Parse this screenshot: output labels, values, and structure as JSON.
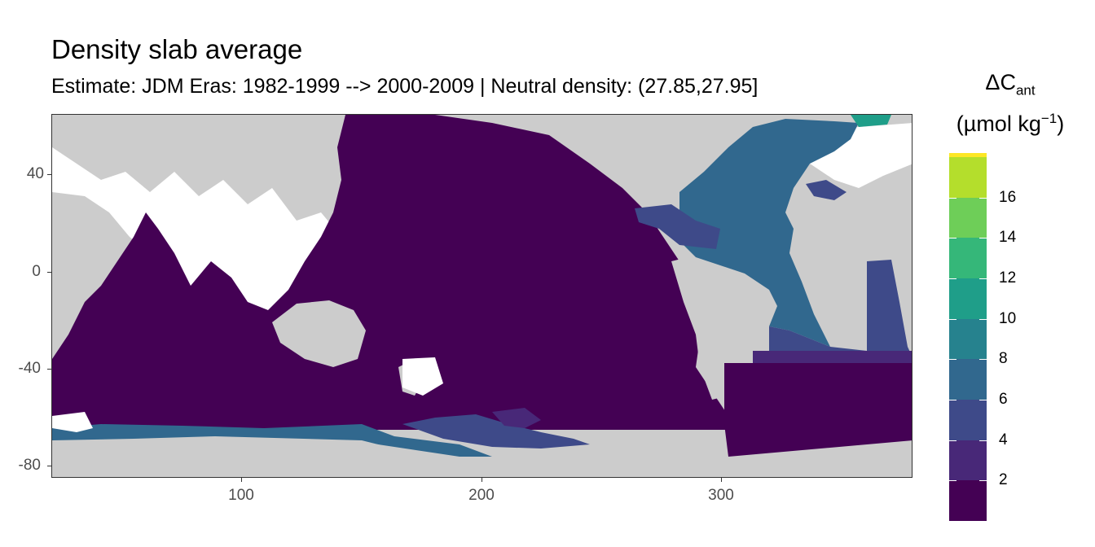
{
  "title": "Density slab average",
  "subtitle": "Estimate: JDM Eras: 1982-1999 --> 2000-2009 | Neutral density: (27.85,27.95]",
  "legend": {
    "title_main": "ΔC",
    "title_sub": "ant",
    "unit_prefix": "(µmol kg",
    "unit_sup": "−1",
    "unit_suffix": ")",
    "breaks": [
      "2",
      "4",
      "6",
      "8",
      "10",
      "12",
      "14",
      "16"
    ],
    "colors": [
      "#440154",
      "#482878",
      "#3E4A89",
      "#31688E",
      "#26828E",
      "#1F9E89",
      "#35B779",
      "#6ECE58",
      "#B4DE2C",
      "#FDE725"
    ]
  },
  "axes": {
    "x_ticks": [
      "100",
      "200",
      "300"
    ],
    "y_ticks": [
      "40",
      "0",
      "-40",
      "-80"
    ]
  },
  "colors": {
    "land": "#CCCCCC",
    "missing": "#FFFFFF",
    "background": "#FFFFFF"
  }
}
